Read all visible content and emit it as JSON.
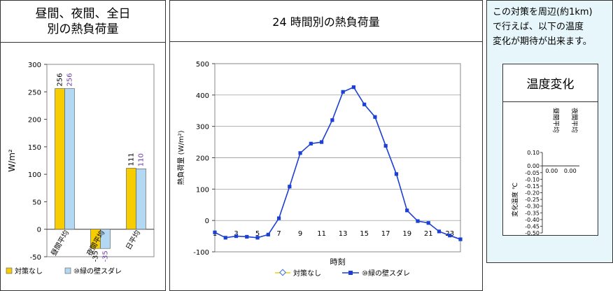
{
  "left_panel": {
    "title_line1": "昼間、夜間、全日",
    "title_line2": "別の熱負荷量"
  },
  "middle_panel": {
    "title": "24 時間別の熱負荷量"
  },
  "right_panel": {
    "note_line1": "この対策を周辺(約1km)",
    "note_line2": "で行えば、以下の温度",
    "note_line3": "変化が期待が出来ます。",
    "box_title": "温度変化"
  },
  "colors": {
    "no_measure_bar": "#f5cd00",
    "green_wall_bar": "#b3d8f3",
    "line_series": "#1c3fd4",
    "label_purple": "#6b3fa0"
  },
  "chart_data": [
    {
      "type": "bar",
      "categories": [
        "昼間平均",
        "夜間平均",
        "日平均"
      ],
      "series": [
        {
          "name": "対策なし",
          "values": [
            256,
            -35,
            111
          ]
        },
        {
          "name": "⑩緑の壁スダレ",
          "values": [
            256,
            -35,
            110
          ]
        }
      ],
      "ylabel": "W/m²",
      "ylim": [
        -50,
        300
      ],
      "yticks": [
        -50,
        0,
        50,
        100,
        150,
        200,
        250,
        300
      ],
      "data_labels": [
        [
          "256",
          "-35",
          "111"
        ],
        [
          "256",
          "-35",
          "110"
        ]
      ],
      "legend": [
        "対策なし",
        "⑩緑の壁スダレ"
      ],
      "legend_position": "bottom"
    },
    {
      "type": "line",
      "x": [
        1,
        2,
        3,
        4,
        5,
        6,
        7,
        8,
        9,
        10,
        11,
        12,
        13,
        14,
        15,
        16,
        17,
        18,
        19,
        20,
        21,
        22,
        23,
        24
      ],
      "series": [
        {
          "name": "対策なし",
          "values": [
            -38,
            -55,
            -50,
            -52,
            -55,
            -45,
            7,
            108,
            215,
            245,
            250,
            320,
            410,
            425,
            370,
            330,
            238,
            148,
            32,
            -2,
            -8,
            -35,
            -48,
            -60
          ]
        },
        {
          "name": "⑩緑の壁スダレ",
          "values": [
            -38,
            -55,
            -50,
            -52,
            -55,
            -45,
            7,
            108,
            215,
            245,
            250,
            320,
            410,
            425,
            370,
            330,
            238,
            148,
            32,
            -2,
            -8,
            -35,
            -48,
            -60
          ]
        }
      ],
      "xlabel": "時刻",
      "ylabel": "熱負荷量 (W/m²)",
      "ylim": [
        -100,
        500
      ],
      "yticks": [
        -100,
        0,
        100,
        200,
        300,
        400,
        500
      ],
      "xticks": [
        "1",
        "3",
        "5",
        "7",
        "9",
        "11",
        "13",
        "15",
        "17",
        "19",
        "21",
        "23"
      ],
      "legend": [
        "対策なし",
        "⑩緑の壁スダレ"
      ],
      "legend_position": "bottom",
      "grid": true
    },
    {
      "type": "bar",
      "categories": [
        "昼間平均",
        "夜間平均"
      ],
      "series": [
        {
          "values": [
            0.0,
            0.0
          ]
        }
      ],
      "data_labels": [
        "0.00",
        "0.00"
      ],
      "ylabel": "変化温度 ℃",
      "ylim": [
        -0.5,
        0.1
      ],
      "yticks": [
        "0.10",
        "0.00",
        "-0.05",
        "-0.10",
        "-0.15",
        "-0.20",
        "-0.25",
        "-0.30",
        "-0.35",
        "-0.40",
        "-0.45",
        "-0.50"
      ]
    }
  ]
}
